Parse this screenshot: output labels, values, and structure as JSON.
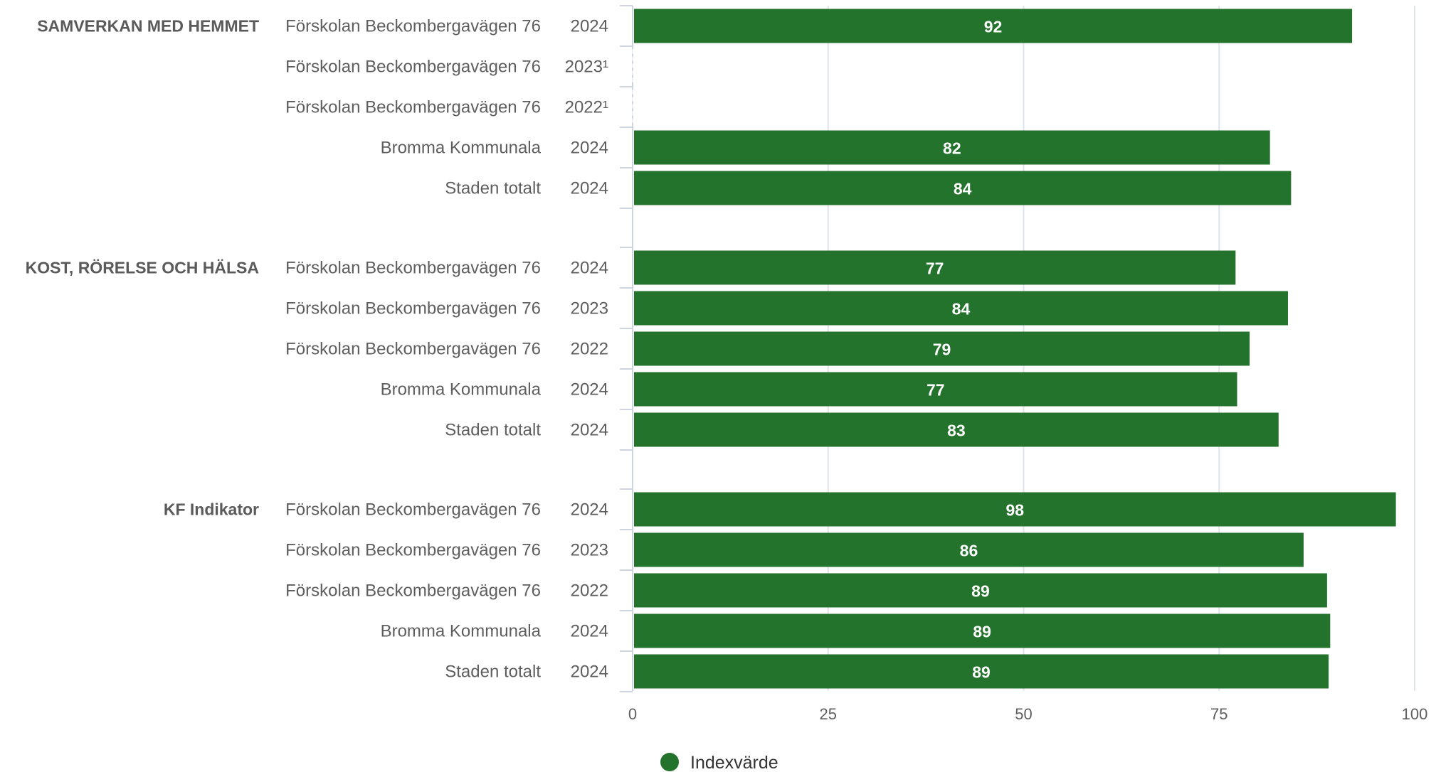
{
  "chart_data": {
    "type": "bar",
    "orientation": "horizontal",
    "xlim": [
      0,
      100
    ],
    "xticks": [
      "0",
      "25",
      "50",
      "75",
      "100"
    ],
    "grid": true,
    "legend_position": "bottom",
    "colors": {
      "bar": "#23732d",
      "grid": "#dfe3ea",
      "legend_dot": "#23732d"
    },
    "series": [
      {
        "name": "Indexvärde"
      }
    ],
    "groups": [
      {
        "label": "SAMVERKAN MED HEMMET",
        "rows": [
          {
            "name": "Förskolan Beckombergavägen 76",
            "year": "2024",
            "value": 92,
            "value_label": "92"
          },
          {
            "name": "Förskolan Beckombergavägen 76",
            "year": "2023¹",
            "value": null,
            "value_label": ""
          },
          {
            "name": "Förskolan Beckombergavägen 76",
            "year": "2022¹",
            "value": null,
            "value_label": ""
          },
          {
            "name": "Bromma Kommunala",
            "year": "2024",
            "value": 81.5,
            "value_label": "82"
          },
          {
            "name": "Staden totalt",
            "year": "2024",
            "value": 84.2,
            "value_label": "84"
          }
        ]
      },
      {
        "label": "KOST, RÖRELSE OCH HÄLSA",
        "rows": [
          {
            "name": "Förskolan Beckombergavägen 76",
            "year": "2024",
            "value": 77.1,
            "value_label": "77"
          },
          {
            "name": "Förskolan Beckombergavägen 76",
            "year": "2023",
            "value": 83.8,
            "value_label": "84"
          },
          {
            "name": "Förskolan Beckombergavägen 76",
            "year": "2022",
            "value": 78.9,
            "value_label": "79"
          },
          {
            "name": "Bromma Kommunala",
            "year": "2024",
            "value": 77.3,
            "value_label": "77"
          },
          {
            "name": "Staden totalt",
            "year": "2024",
            "value": 82.6,
            "value_label": "83"
          }
        ]
      },
      {
        "label": "KF Indikator",
        "rows": [
          {
            "name": "Förskolan Beckombergavägen 76",
            "year": "2024",
            "value": 97.6,
            "value_label": "98"
          },
          {
            "name": "Förskolan Beckombergavägen 76",
            "year": "2023",
            "value": 85.8,
            "value_label": "86"
          },
          {
            "name": "Förskolan Beckombergavägen 76",
            "year": "2022",
            "value": 88.8,
            "value_label": "89"
          },
          {
            "name": "Bromma Kommunala",
            "year": "2024",
            "value": 89.2,
            "value_label": "89"
          },
          {
            "name": "Staden totalt",
            "year": "2024",
            "value": 89.0,
            "value_label": "89"
          }
        ]
      }
    ]
  }
}
